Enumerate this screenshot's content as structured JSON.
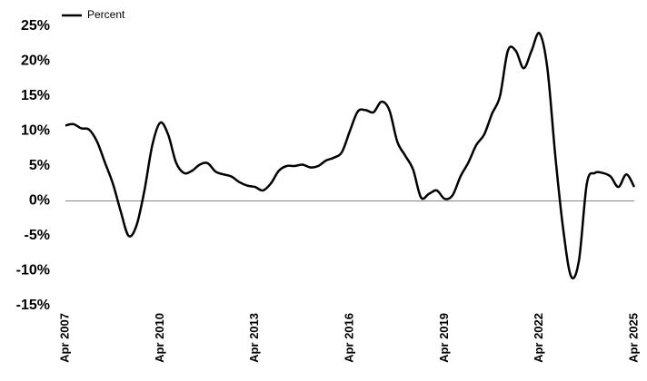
{
  "chart_data": {
    "type": "line",
    "categories": [
      "Apr 2007",
      null,
      null,
      null,
      null,
      null,
      null,
      null,
      null,
      null,
      null,
      null,
      "Apr 2010",
      null,
      null,
      null,
      null,
      null,
      null,
      null,
      null,
      null,
      null,
      null,
      "Apr 2013",
      null,
      null,
      null,
      null,
      null,
      null,
      null,
      null,
      null,
      null,
      null,
      "Apr 2016",
      null,
      null,
      null,
      null,
      null,
      null,
      null,
      null,
      null,
      null,
      null,
      "Apr 2019",
      null,
      null,
      null,
      null,
      null,
      null,
      null,
      null,
      null,
      null,
      null,
      "Apr 2022",
      null,
      null,
      null,
      null,
      null,
      null,
      null,
      null,
      null,
      null,
      null,
      "Apr 2025"
    ],
    "series": [
      {
        "name": "Percent",
        "color": "#000000",
        "values": [
          10.8,
          11.0,
          10.4,
          10.2,
          8.5,
          5.5,
          2.5,
          -1.5,
          -5.0,
          -3.5,
          1.5,
          8.0,
          11.2,
          9.5,
          5.5,
          4.0,
          4.3,
          5.2,
          5.4,
          4.2,
          3.8,
          3.5,
          2.7,
          2.2,
          2.0,
          1.5,
          2.5,
          4.3,
          5.0,
          5.0,
          5.2,
          4.8,
          5.0,
          5.8,
          6.2,
          7.0,
          10.0,
          12.8,
          13.0,
          12.7,
          14.2,
          13.0,
          8.5,
          6.5,
          4.5,
          0.5,
          1.0,
          1.5,
          0.3,
          0.8,
          3.5,
          5.5,
          8.0,
          9.5,
          12.5,
          15.0,
          21.5,
          21.5,
          19.0,
          21.5,
          24.0,
          19.0,
          6.5,
          -4.0,
          -10.8,
          -8.5,
          2.5,
          4.0,
          4.0,
          3.5,
          2.0,
          3.8,
          2.0
        ]
      }
    ],
    "ylim": [
      -15,
      25
    ],
    "yticks": [
      {
        "value": -15,
        "label": "-15%"
      },
      {
        "value": -10,
        "label": "-10%"
      },
      {
        "value": -5,
        "label": "-5%"
      },
      {
        "value": 0,
        "label": "0%"
      },
      {
        "value": 5,
        "label": "5%"
      },
      {
        "value": 10,
        "label": "10%"
      },
      {
        "value": 15,
        "label": "15%"
      },
      {
        "value": 20,
        "label": "20%"
      },
      {
        "value": 25,
        "label": "25%"
      }
    ],
    "legend": "top-left"
  }
}
